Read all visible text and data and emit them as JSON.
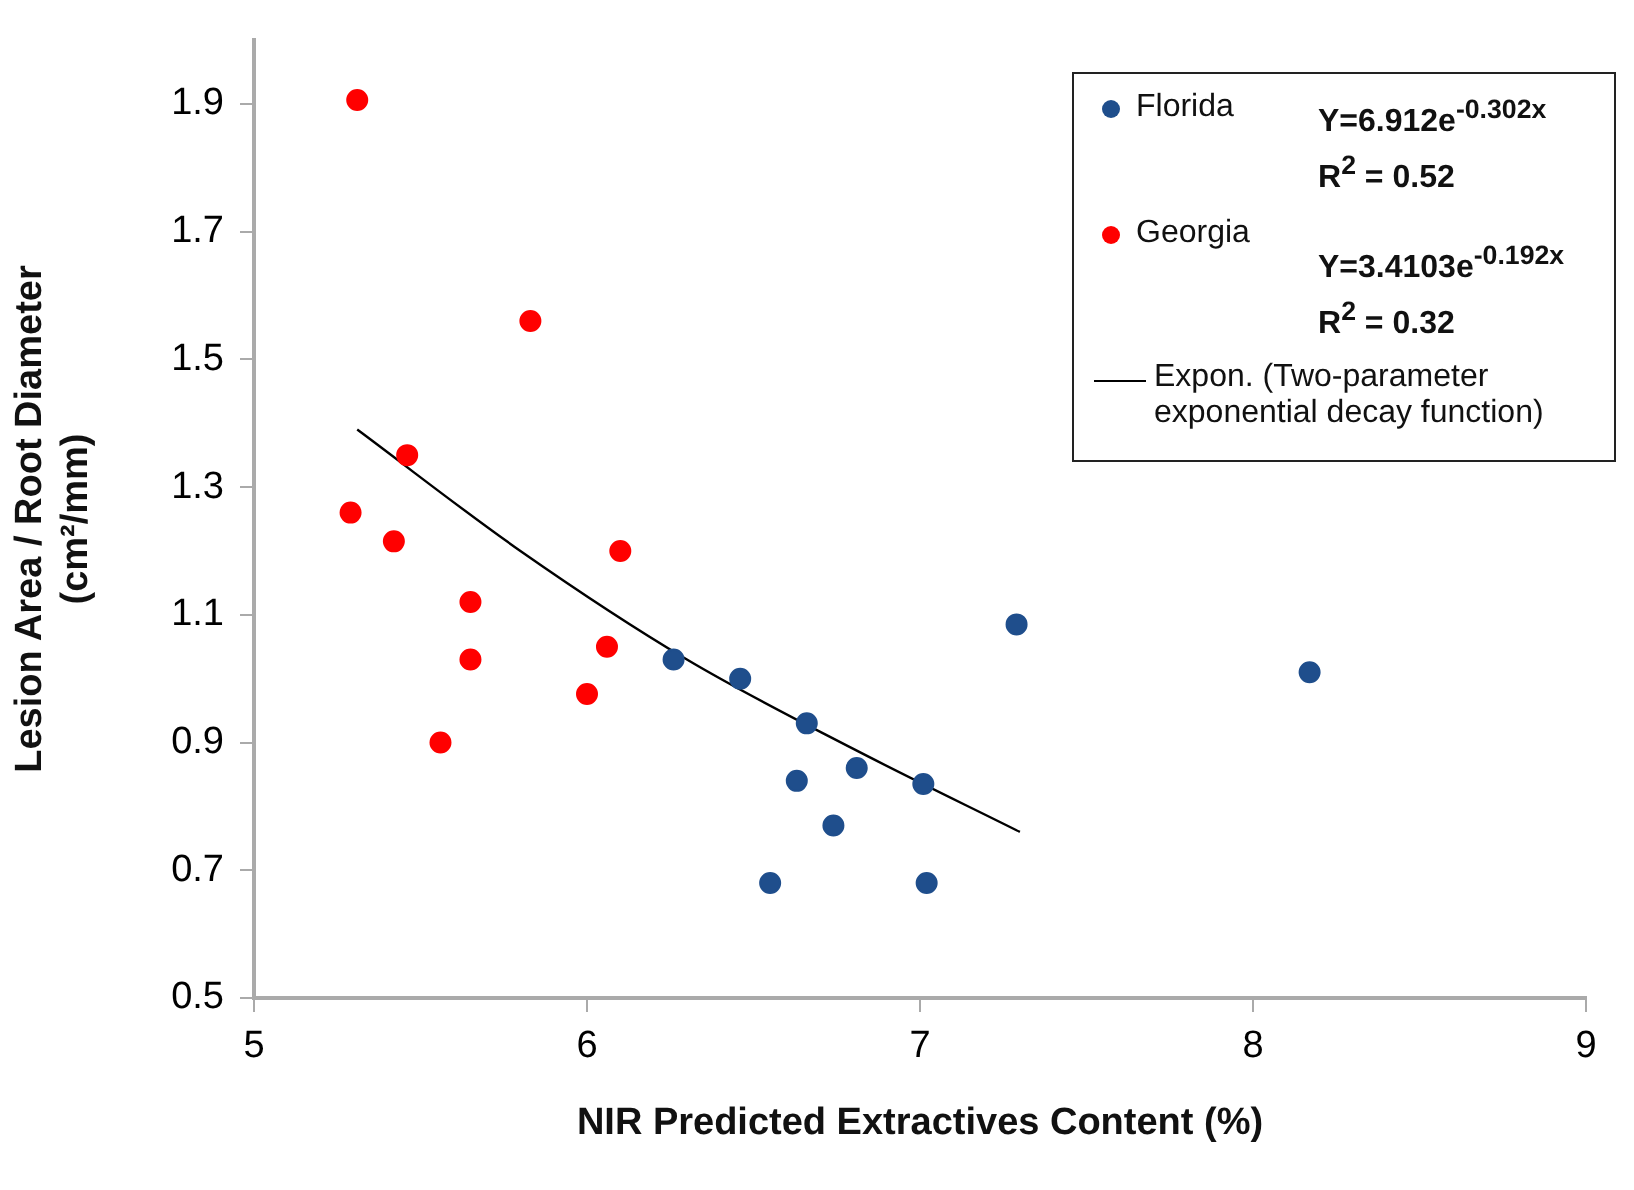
{
  "chart_data": {
    "type": "scatter",
    "xlabel": "NIR Predicted Extractives Content (%)",
    "ylabel": "Lesion Area / Root Diameter (cm²/mm)",
    "xlim": [
      5,
      9
    ],
    "xticks": [
      5,
      6,
      7,
      8,
      9
    ],
    "ylim": [
      0.5,
      2.0
    ],
    "yticks": [
      0.5,
      0.7,
      0.9,
      1.1,
      1.3,
      1.5,
      1.7,
      1.9
    ],
    "grid": false,
    "legend": "top right",
    "marker": "circle",
    "series": [
      {
        "name": "Florida",
        "color": "#1f4e8c",
        "x": [
          6.26,
          6.46,
          6.66,
          6.63,
          6.81,
          6.74,
          7.01,
          6.55,
          7.02,
          7.29,
          8.17
        ],
        "values": [
          1.03,
          1.0,
          0.93,
          0.84,
          0.86,
          0.77,
          0.835,
          0.68,
          0.68,
          1.085,
          1.01
        ]
      },
      {
        "name": "Georgia",
        "color": "#ff0000",
        "x": [
          5.31,
          5.83,
          5.46,
          5.29,
          5.42,
          5.65,
          5.65,
          5.56,
          6.1,
          6.06,
          6.0
        ],
        "values": [
          1.906,
          1.56,
          1.35,
          1.26,
          1.215,
          1.12,
          1.03,
          0.9,
          1.2,
          1.05,
          0.976
        ]
      },
      {
        "name": "Expon. (Two-parameter exponential decay function)",
        "type": "line",
        "marker": "none",
        "color": "#000000",
        "x": [
          5.31,
          5.8,
          6.3,
          6.8,
          7.3
        ],
        "values": [
          1.39,
          1.2,
          1.03,
          0.89,
          0.76
        ]
      }
    ],
    "annotations": [
      "Y=6.912e$^{-0.302x}$",
      "R$^{2}$ = 0.52",
      "Y=3.4103e$^{-0.192x}$",
      "R$^{2}$ = 0.32"
    ]
  }
}
